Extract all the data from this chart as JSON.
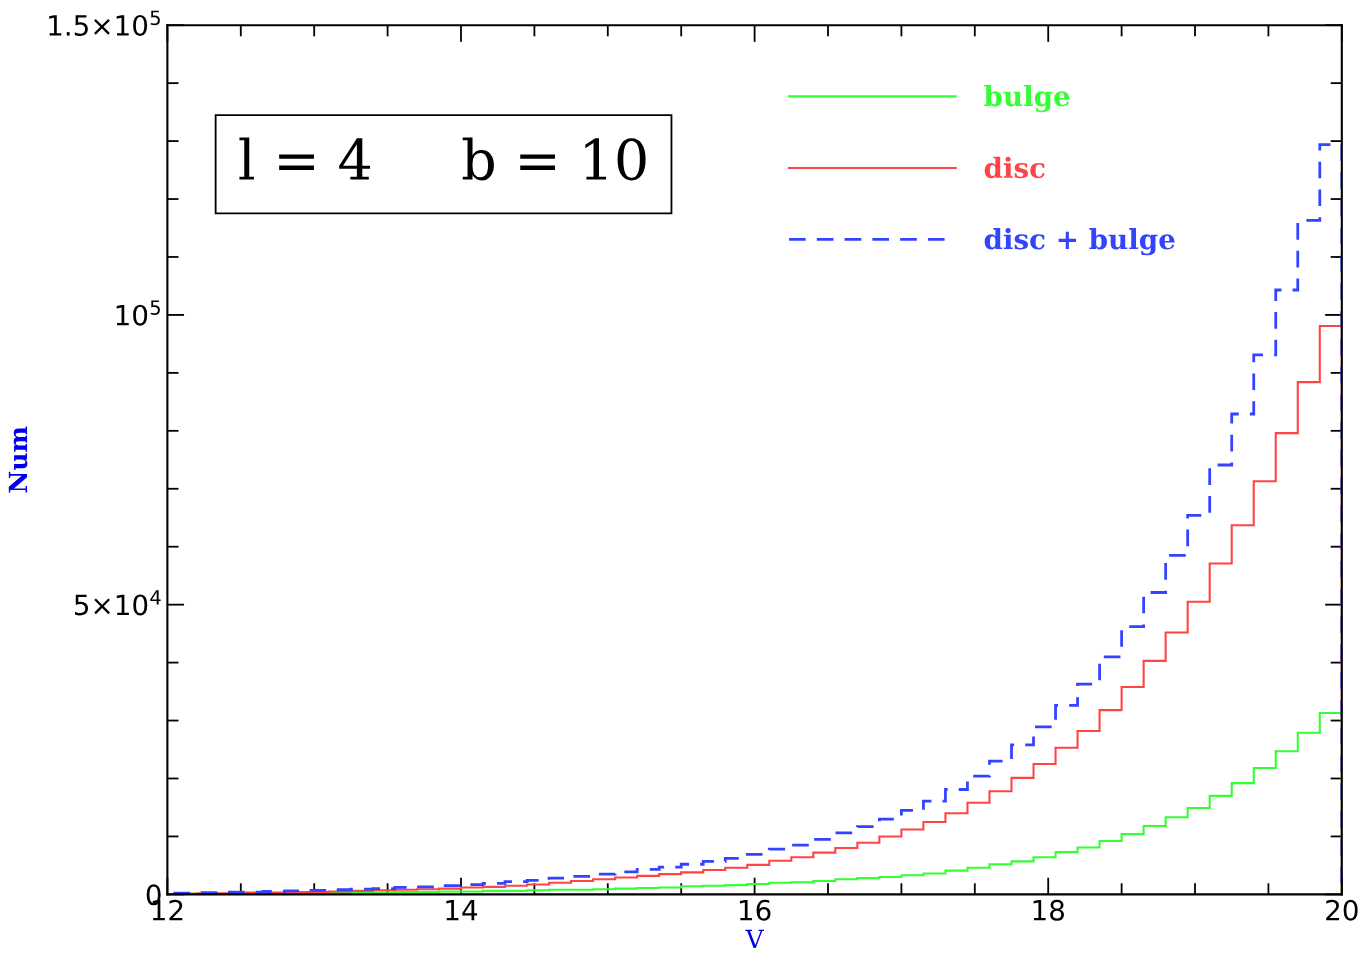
{
  "chart_data": {
    "type": "histogram",
    "xlabel": "V",
    "ylabel": "Num",
    "annotations": [
      "l = 4     b = 10"
    ],
    "bins": [
      12.05,
      12.2,
      12.35,
      12.5,
      12.65,
      12.8,
      12.95,
      13.1,
      13.25,
      13.4,
      13.55,
      13.7,
      13.85,
      14.0,
      14.15,
      14.3,
      14.45,
      14.6,
      14.75,
      14.9,
      15.05,
      15.2,
      15.35,
      15.5,
      15.65,
      15.8,
      15.95,
      16.1,
      16.25,
      16.4,
      16.55,
      16.7,
      16.85,
      17.0,
      17.15,
      17.3,
      17.45,
      17.6,
      17.75,
      17.9,
      18.05,
      18.2,
      18.35,
      18.5,
      18.65,
      18.8,
      18.95,
      19.1,
      19.25,
      19.4,
      19.55,
      19.7,
      19.85,
      20.0
    ],
    "series": [
      {
        "name": "bulge",
        "color": "#33ff33",
        "line_style": "solid",
        "values": [
          100,
          100,
          100,
          200,
          200,
          200,
          200,
          300,
          300,
          300,
          400,
          400,
          500,
          500,
          600,
          600,
          700,
          800,
          800,
          900,
          1000,
          1100,
          1200,
          1400,
          1500,
          1600,
          1800,
          2000,
          2100,
          2300,
          2600,
          2800,
          3000,
          3300,
          3600,
          4100,
          4600,
          5200,
          5700,
          6400,
          7300,
          8100,
          9200,
          10400,
          11800,
          13300,
          14900,
          17000,
          19200,
          21800,
          24700,
          27900,
          31300
        ]
      },
      {
        "name": "disc",
        "color": "#ff4444",
        "line_style": "solid",
        "values": [
          100,
          200,
          200,
          300,
          300,
          400,
          400,
          500,
          600,
          700,
          800,
          900,
          1000,
          1200,
          1300,
          1500,
          1700,
          2000,
          2300,
          2600,
          2900,
          3200,
          3500,
          3800,
          4200,
          4600,
          5100,
          5800,
          6400,
          7200,
          8000,
          8900,
          10000,
          11200,
          12500,
          14000,
          15800,
          17800,
          20100,
          22500,
          25300,
          28200,
          31800,
          35800,
          40300,
          45200,
          50500,
          57100,
          63700,
          71300,
          79600,
          88400,
          98100
        ]
      },
      {
        "name": "disc + bulge",
        "color": "#3344ff",
        "line_style": "dashed",
        "values": [
          200,
          300,
          400,
          400,
          500,
          600,
          700,
          800,
          900,
          1000,
          1200,
          1300,
          1500,
          1700,
          1900,
          2200,
          2400,
          2800,
          3100,
          3500,
          3900,
          4300,
          4700,
          5200,
          5700,
          6200,
          6900,
          7800,
          8500,
          9500,
          10600,
          11700,
          13000,
          14500,
          16100,
          18100,
          20400,
          23000,
          25800,
          28900,
          32600,
          36300,
          41000,
          46200,
          52100,
          58500,
          65400,
          74100,
          82900,
          93100,
          104300,
          116300,
          129400
        ]
      }
    ],
    "xlim": [
      12,
      20
    ],
    "xticks": [
      12,
      14,
      16,
      18,
      20
    ],
    "ylim": [
      0,
      150000
    ],
    "yticks": [
      0,
      {
        "value": 50000,
        "label": "5×10$^{4}$"
      },
      {
        "value": 100000,
        "label": "10$^{5}$"
      },
      {
        "value": 150000,
        "label": "1.5×10$^{5}$"
      }
    ],
    "legend": "top right",
    "grid": false
  }
}
